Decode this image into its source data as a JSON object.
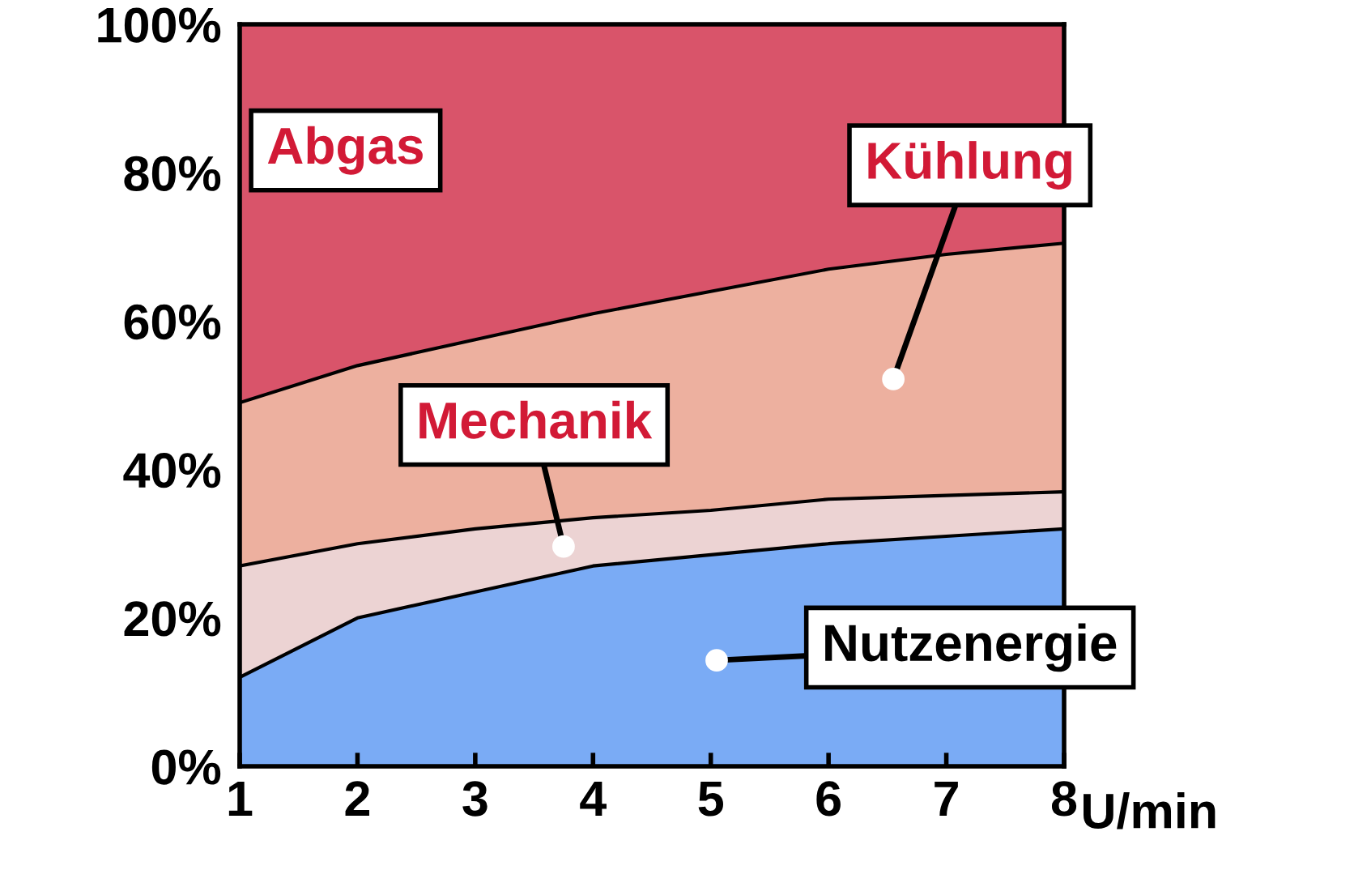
{
  "chart_data": {
    "type": "area",
    "stacked": true,
    "xlabel": "U/min",
    "x": [
      1,
      2,
      3,
      4,
      5,
      6,
      7,
      8
    ],
    "series": [
      {
        "name": "Nutzenergie",
        "color": "#7aabf5",
        "values": [
          12,
          20,
          23.5,
          27,
          28.5,
          30,
          31,
          32
        ]
      },
      {
        "name": "Mechanik",
        "color": "#ecd3d3",
        "values": [
          15,
          10,
          8.5,
          6.5,
          6,
          6,
          5.5,
          5
        ]
      },
      {
        "name": "Kühlung",
        "color": "#edb09f",
        "values": [
          22,
          24,
          25.5,
          27.5,
          29.5,
          31,
          32.5,
          33.5
        ]
      },
      {
        "name": "Abgas",
        "color": "#d9546a",
        "values": [
          51,
          46,
          42.5,
          39,
          36,
          33,
          31,
          29.5
        ]
      }
    ],
    "xlim": [
      1,
      8
    ],
    "xticks": [
      1,
      2,
      3,
      4,
      5,
      6,
      7,
      8
    ],
    "ylim": [
      0,
      100
    ],
    "yticks": [
      {
        "value": 0,
        "label": "0%"
      },
      {
        "value": 20,
        "label": "20%"
      },
      {
        "value": 40,
        "label": "40%"
      },
      {
        "value": 60,
        "label": "60%"
      },
      {
        "value": 80,
        "label": "80%"
      },
      {
        "value": 100,
        "label": "100%"
      }
    ],
    "grid": false,
    "legend": false
  }
}
